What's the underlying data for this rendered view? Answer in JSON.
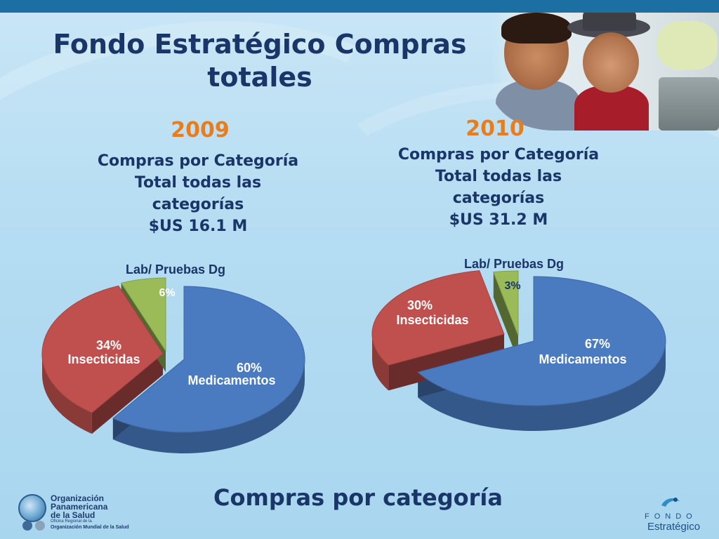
{
  "slide": {
    "title": "Fondo Estratégico Compras totales",
    "footer": "Compras por categoría"
  },
  "panels": [
    {
      "year": "2009",
      "desc_lines": [
        "Compras por Categoría",
        "Total todas las",
        "categorías",
        "$US 16.1 M"
      ]
    },
    {
      "year": "2010",
      "desc_lines": [
        "Compras por Categoría",
        "Total todas las",
        "categorías",
        "$US 31.2 M"
      ]
    }
  ],
  "chart_data": [
    {
      "type": "pie",
      "title": "2009",
      "categories": [
        "Medicamentos",
        "Insecticidas",
        "Lab/ Pruebas Dg"
      ],
      "values": [
        60,
        34,
        6
      ],
      "labels": [
        "60%",
        "34%",
        "6%"
      ],
      "colors": [
        "#4a7ac0",
        "#c0504d",
        "#9bbb59"
      ]
    },
    {
      "type": "pie",
      "title": "2010",
      "categories": [
        "Medicamentos",
        "Insecticidas",
        "Lab/ Pruebas Dg"
      ],
      "values": [
        67,
        30,
        3
      ],
      "labels": [
        "67%",
        "30%",
        "3%"
      ],
      "colors": [
        "#4a7ac0",
        "#c0504d",
        "#9bbb59"
      ]
    }
  ],
  "logos": {
    "ops_line1": "Organización",
    "ops_line2": "Panamericana",
    "ops_line3": "de la Salud",
    "ops_small1": "Oficina Regional de la",
    "ops_small2": "Organización Mundial de la Salud",
    "fondo_word1": "FONDO",
    "fondo_word2": "Estratégico"
  },
  "colors": {
    "title": "#1a3567",
    "year": "#e87d1e",
    "topbar": "#1c6fa2"
  }
}
